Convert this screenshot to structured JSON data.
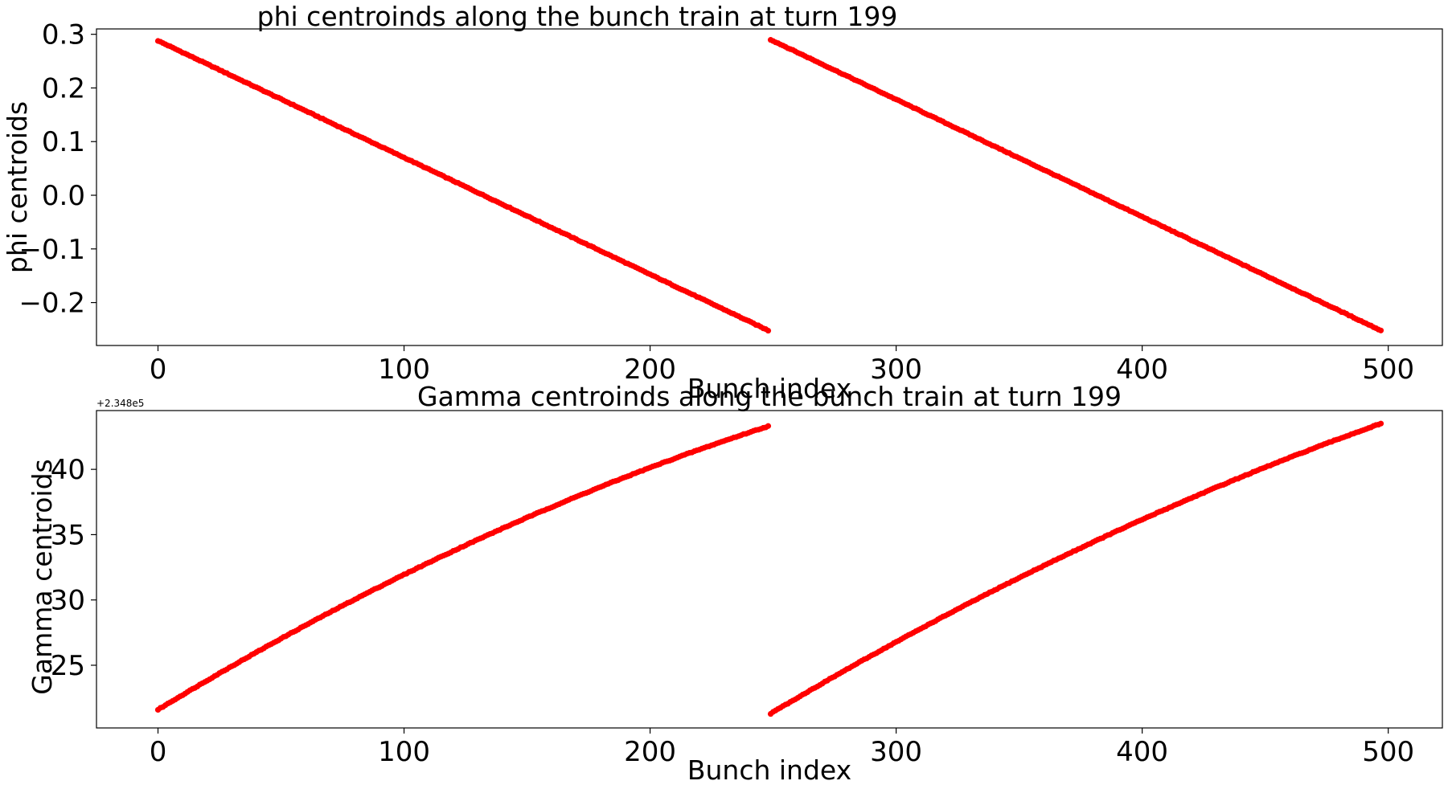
{
  "chart_data": [
    {
      "type": "scatter",
      "title": "phi centroinds along the bunch train at turn 199",
      "xlabel": "Bunch index",
      "ylabel": "phi centroids",
      "xlim": [
        -25,
        522
      ],
      "ylim": [
        -0.28,
        0.31
      ],
      "xticks": [
        0,
        100,
        200,
        300,
        400,
        500
      ],
      "xtick_labels": [
        "0",
        "100",
        "200",
        "300",
        "400",
        "500"
      ],
      "yticks": [
        -0.2,
        -0.1,
        0.0,
        0.1,
        0.2,
        0.3
      ],
      "ytick_labels": [
        "−0.2",
        "−0.1",
        "0.0",
        "0.1",
        "0.2",
        "0.3"
      ],
      "grid": false,
      "marker_color": "#ff0000",
      "series": [
        {
          "model": "linear",
          "x_start": 0,
          "x_end": 248,
          "step": 1,
          "y_start": 0.288,
          "y_end": -0.252
        },
        {
          "model": "linear",
          "x_start": 249,
          "x_end": 497,
          "step": 1,
          "y_start": 0.29,
          "y_end": -0.252
        }
      ]
    },
    {
      "type": "scatter",
      "title": "Gamma centroinds along the bunch train at turn 199",
      "xlabel": "Bunch index",
      "ylabel": "Gamma centroids",
      "offset_text": "+2.348e5",
      "xlim": [
        -25,
        522
      ],
      "ylim": [
        20.2,
        44.5
      ],
      "xticks": [
        0,
        100,
        200,
        300,
        400,
        500
      ],
      "xtick_labels": [
        "0",
        "100",
        "200",
        "300",
        "400",
        "500"
      ],
      "yticks": [
        25,
        30,
        35,
        40
      ],
      "ytick_labels": [
        "25",
        "30",
        "35",
        "40"
      ],
      "grid": false,
      "marker_color": "#ff0000",
      "series": [
        {
          "model": "concave",
          "x_start": 0,
          "x_end": 248,
          "step": 1,
          "y_start": 21.6,
          "y_mid": 34.1,
          "y_end": 43.3
        },
        {
          "model": "concave",
          "x_start": 249,
          "x_end": 497,
          "step": 1,
          "y_start": 21.3,
          "y_mid": 33.8,
          "y_end": 43.5
        }
      ]
    }
  ]
}
